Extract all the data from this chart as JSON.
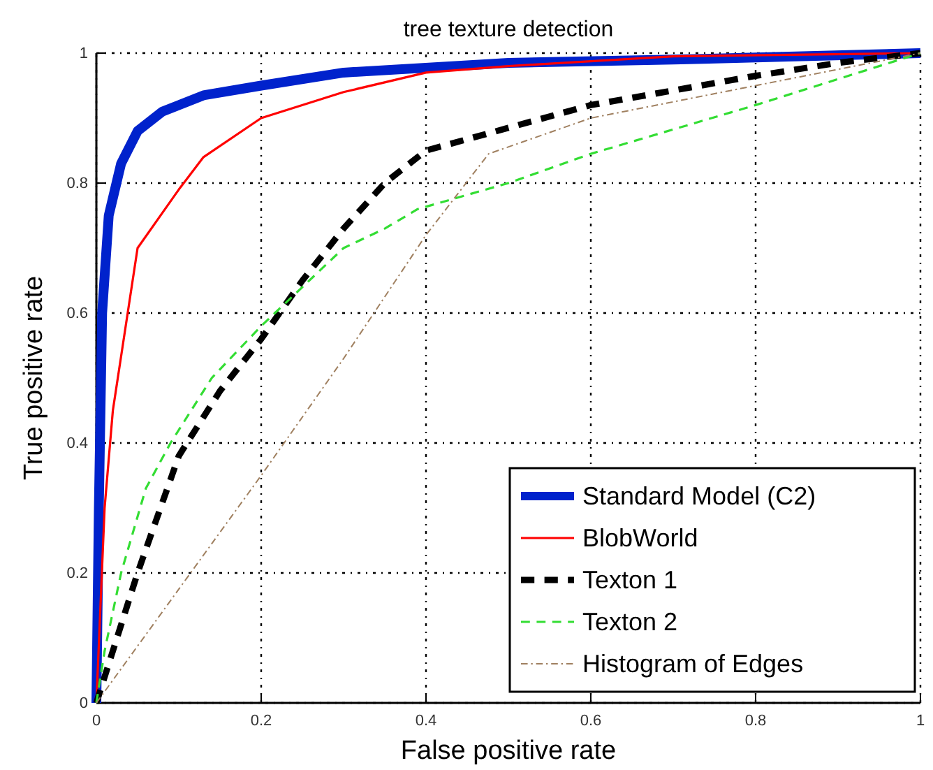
{
  "chart_data": {
    "type": "line",
    "title": "tree texture detection",
    "xlabel": "False positive rate",
    "ylabel": "True positive rate",
    "xlim": [
      0,
      1
    ],
    "ylim": [
      0,
      1
    ],
    "xticks": [
      0,
      0.2,
      0.4,
      0.6,
      0.8,
      1
    ],
    "yticks": [
      0,
      0.2,
      0.4,
      0.6,
      0.8,
      1
    ],
    "grid": true,
    "legend": "bottom right",
    "marker": "none",
    "series": [
      {
        "name": "Standard Model (C2)",
        "color": "#0022cc",
        "line_style": "solid",
        "x": [
          0,
          0.003,
          0.007,
          0.015,
          0.03,
          0.05,
          0.08,
          0.13,
          0.2,
          0.3,
          0.5,
          0.7,
          1
        ],
        "values": [
          0,
          0.3,
          0.6,
          0.75,
          0.83,
          0.88,
          0.91,
          0.935,
          0.95,
          0.97,
          0.985,
          0.99,
          1
        ]
      },
      {
        "name": "BlobWorld",
        "color": "#ff0000",
        "line_style": "solid",
        "x": [
          0,
          0.01,
          0.02,
          0.05,
          0.1,
          0.13,
          0.2,
          0.3,
          0.4,
          0.5,
          0.7,
          1
        ],
        "values": [
          0,
          0.3,
          0.45,
          0.7,
          0.79,
          0.84,
          0.9,
          0.94,
          0.97,
          0.98,
          0.995,
          1
        ]
      },
      {
        "name": "Texton 1",
        "color": "#000000",
        "line_style": "dashed",
        "x": [
          0,
          0.02,
          0.05,
          0.1,
          0.15,
          0.2,
          0.25,
          0.3,
          0.35,
          0.4,
          0.5,
          0.6,
          0.8,
          0.9,
          1
        ],
        "values": [
          0,
          0.08,
          0.2,
          0.38,
          0.48,
          0.56,
          0.65,
          0.73,
          0.8,
          0.85,
          0.885,
          0.92,
          0.965,
          0.985,
          1
        ]
      },
      {
        "name": "Texton 2",
        "color": "#33dd33",
        "line_style": "dashed",
        "x": [
          0,
          0.01,
          0.03,
          0.06,
          0.09,
          0.14,
          0.2,
          0.25,
          0.3,
          0.35,
          0.39,
          0.5,
          0.6,
          0.8,
          1
        ],
        "values": [
          0,
          0.08,
          0.2,
          0.33,
          0.4,
          0.5,
          0.58,
          0.64,
          0.7,
          0.73,
          0.76,
          0.8,
          0.845,
          0.92,
          1
        ]
      },
      {
        "name": "Histogram of Edges",
        "color": "#a08060",
        "line_style": "dashdot",
        "x": [
          0,
          0.2,
          0.3,
          0.4,
          0.476,
          0.6,
          0.8,
          1
        ],
        "values": [
          0,
          0.35,
          0.53,
          0.72,
          0.845,
          0.9,
          0.95,
          1
        ]
      }
    ]
  }
}
